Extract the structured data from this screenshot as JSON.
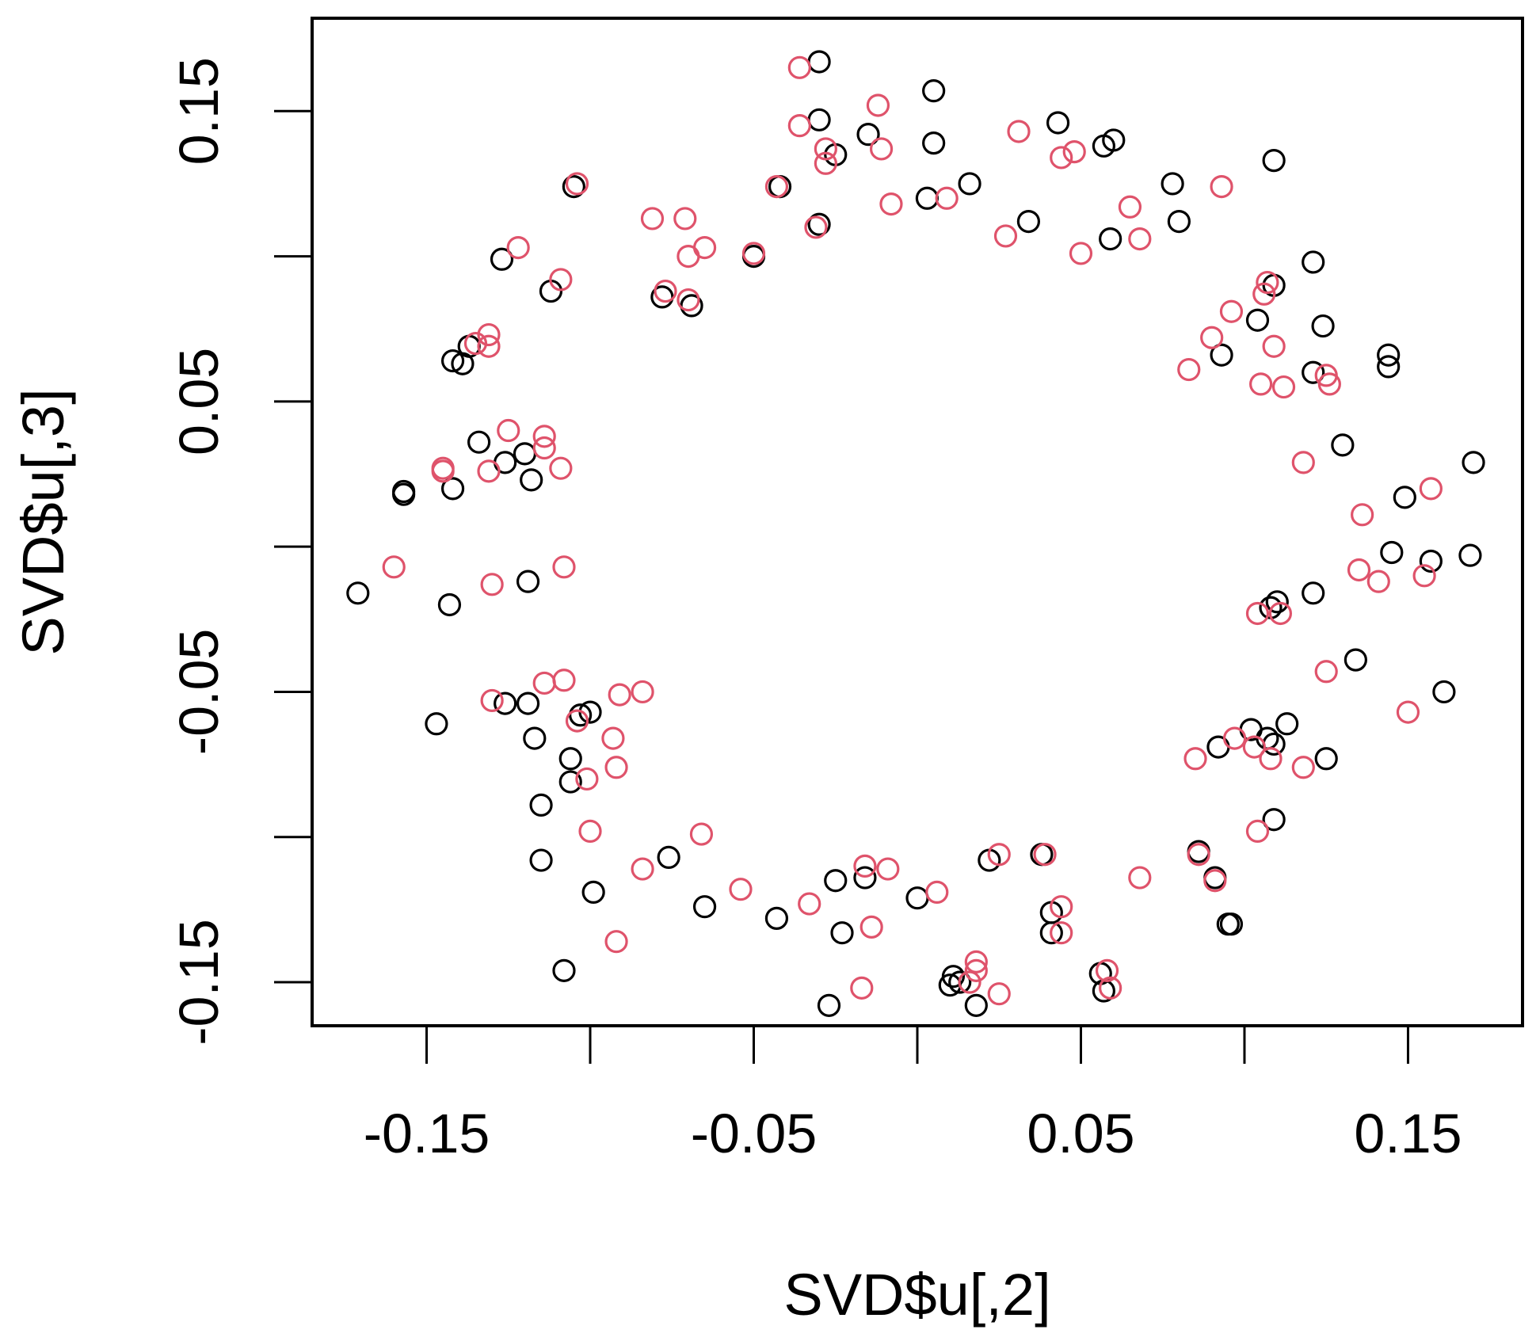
{
  "chart_data": {
    "type": "scatter",
    "title": "",
    "xlabel": "SVD$u[,2]",
    "ylabel": "SVD$u[,3]",
    "xlim": [
      -0.185,
      0.185
    ],
    "ylim": [
      -0.165,
      0.182
    ],
    "xticks": [
      -0.15,
      -0.1,
      -0.05,
      0,
      0.05,
      0.1,
      0.15
    ],
    "xtick_labels": [
      "-0.15",
      "-0.05",
      "0.05",
      "0.15"
    ],
    "xtick_label_values": [
      -0.15,
      -0.05,
      0.05,
      0.15
    ],
    "yticks": [
      -0.15,
      -0.1,
      -0.05,
      0,
      0.05,
      0.1,
      0.15
    ],
    "ytick_labels": [
      "-0.15",
      "-0.05",
      "0.05",
      "0.15"
    ],
    "ytick_label_values": [
      -0.15,
      -0.05,
      0.05,
      0.15
    ],
    "grid": false,
    "legend": "none",
    "marker": "open-circle",
    "series": [
      {
        "color": "#000000",
        "points": [
          [
            -0.03,
            0.167
          ],
          [
            0.005,
            0.157
          ],
          [
            -0.03,
            0.147
          ],
          [
            0.005,
            0.139
          ],
          [
            -0.015,
            0.142
          ],
          [
            -0.025,
            0.135
          ],
          [
            0.043,
            0.146
          ],
          [
            0.057,
            0.138
          ],
          [
            0.06,
            0.14
          ],
          [
            0.109,
            0.133
          ],
          [
            0.078,
            0.125
          ],
          [
            0.016,
            0.125
          ],
          [
            -0.042,
            0.124
          ],
          [
            -0.105,
            0.124
          ],
          [
            0.003,
            0.12
          ],
          [
            0.034,
            0.112
          ],
          [
            0.08,
            0.112
          ],
          [
            -0.03,
            0.111
          ],
          [
            -0.05,
            0.1
          ],
          [
            0.059,
            0.106
          ],
          [
            -0.127,
            0.099
          ],
          [
            0.121,
            0.098
          ],
          [
            -0.112,
            0.088
          ],
          [
            0.109,
            0.09
          ],
          [
            -0.078,
            0.086
          ],
          [
            -0.069,
            0.083
          ],
          [
            0.104,
            0.078
          ],
          [
            0.124,
            0.076
          ],
          [
            -0.137,
            0.069
          ],
          [
            -0.142,
            0.064
          ],
          [
            -0.139,
            0.063
          ],
          [
            0.093,
            0.066
          ],
          [
            0.144,
            0.066
          ],
          [
            0.144,
            0.062
          ],
          [
            0.121,
            0.06
          ],
          [
            -0.134,
            0.036
          ],
          [
            0.13,
            0.035
          ],
          [
            -0.126,
            0.029
          ],
          [
            -0.12,
            0.032
          ],
          [
            -0.118,
            0.023
          ],
          [
            -0.142,
            0.02
          ],
          [
            -0.157,
            0.018
          ],
          [
            -0.157,
            0.019
          ],
          [
            0.17,
            0.029
          ],
          [
            0.149,
            0.017
          ],
          [
            0.145,
            -0.002
          ],
          [
            0.157,
            -0.005
          ],
          [
            0.169,
            -0.003
          ],
          [
            -0.171,
            -0.016
          ],
          [
            -0.119,
            -0.012
          ],
          [
            -0.143,
            -0.02
          ],
          [
            0.121,
            -0.016
          ],
          [
            0.11,
            -0.019
          ],
          [
            0.108,
            -0.021
          ],
          [
            0.134,
            -0.039
          ],
          [
            0.161,
            -0.05
          ],
          [
            -0.126,
            -0.054
          ],
          [
            -0.119,
            -0.054
          ],
          [
            -0.103,
            -0.058
          ],
          [
            -0.1,
            -0.057
          ],
          [
            -0.147,
            -0.061
          ],
          [
            -0.117,
            -0.066
          ],
          [
            0.113,
            -0.061
          ],
          [
            0.102,
            -0.063
          ],
          [
            0.107,
            -0.066
          ],
          [
            0.109,
            -0.068
          ],
          [
            0.092,
            -0.069
          ],
          [
            -0.106,
            -0.073
          ],
          [
            0.125,
            -0.073
          ],
          [
            -0.106,
            -0.081
          ],
          [
            -0.115,
            -0.089
          ],
          [
            0.109,
            -0.094
          ],
          [
            0.086,
            -0.105
          ],
          [
            -0.076,
            -0.107
          ],
          [
            -0.115,
            -0.108
          ],
          [
            0.022,
            -0.108
          ],
          [
            0.038,
            -0.106
          ],
          [
            -0.016,
            -0.114
          ],
          [
            -0.025,
            -0.115
          ],
          [
            0.091,
            -0.114
          ],
          [
            -0.099,
            -0.119
          ],
          [
            0,
            -0.121
          ],
          [
            -0.065,
            -0.124
          ],
          [
            -0.043,
            -0.128
          ],
          [
            0.041,
            -0.126
          ],
          [
            0.041,
            -0.133
          ],
          [
            -0.023,
            -0.133
          ],
          [
            0.095,
            -0.13
          ],
          [
            0.096,
            -0.13
          ],
          [
            -0.108,
            -0.146
          ],
          [
            0.011,
            -0.148
          ],
          [
            0.01,
            -0.151
          ],
          [
            0.013,
            -0.15
          ],
          [
            0.056,
            -0.147
          ],
          [
            0.057,
            -0.153
          ],
          [
            -0.027,
            -0.158
          ],
          [
            0.018,
            -0.158
          ]
        ]
      },
      {
        "color": "#df536b",
        "points": [
          [
            -0.036,
            0.165
          ],
          [
            -0.012,
            0.152
          ],
          [
            -0.036,
            0.145
          ],
          [
            -0.028,
            0.137
          ],
          [
            -0.011,
            0.137
          ],
          [
            0.031,
            0.143
          ],
          [
            0.044,
            0.134
          ],
          [
            0.048,
            0.136
          ],
          [
            -0.104,
            0.125
          ],
          [
            -0.043,
            0.124
          ],
          [
            -0.028,
            0.132
          ],
          [
            0.093,
            0.124
          ],
          [
            -0.008,
            0.118
          ],
          [
            0.009,
            0.12
          ],
          [
            0.065,
            0.117
          ],
          [
            -0.081,
            0.113
          ],
          [
            -0.071,
            0.113
          ],
          [
            -0.031,
            0.11
          ],
          [
            0.027,
            0.107
          ],
          [
            0.068,
            0.106
          ],
          [
            -0.122,
            0.103
          ],
          [
            -0.065,
            0.103
          ],
          [
            -0.07,
            0.1
          ],
          [
            -0.05,
            0.101
          ],
          [
            0.05,
            0.101
          ],
          [
            -0.109,
            0.092
          ],
          [
            -0.077,
            0.088
          ],
          [
            -0.07,
            0.085
          ],
          [
            0.107,
            0.091
          ],
          [
            0.106,
            0.087
          ],
          [
            0.096,
            0.081
          ],
          [
            -0.131,
            0.073
          ],
          [
            -0.131,
            0.069
          ],
          [
            -0.135,
            0.07
          ],
          [
            0.09,
            0.072
          ],
          [
            0.109,
            0.069
          ],
          [
            0.083,
            0.061
          ],
          [
            0.125,
            0.059
          ],
          [
            0.126,
            0.056
          ],
          [
            0.105,
            0.056
          ],
          [
            0.112,
            0.055
          ],
          [
            -0.125,
            0.04
          ],
          [
            -0.114,
            0.038
          ],
          [
            -0.114,
            0.034
          ],
          [
            -0.145,
            0.027
          ],
          [
            -0.145,
            0.026
          ],
          [
            -0.131,
            0.026
          ],
          [
            -0.109,
            0.027
          ],
          [
            0.118,
            0.029
          ],
          [
            0.157,
            0.02
          ],
          [
            0.136,
            0.011
          ],
          [
            -0.16,
            -0.007
          ],
          [
            -0.108,
            -0.007
          ],
          [
            -0.13,
            -0.013
          ],
          [
            0.135,
            -0.008
          ],
          [
            0.141,
            -0.012
          ],
          [
            0.155,
            -0.01
          ],
          [
            0.104,
            -0.023
          ],
          [
            0.111,
            -0.023
          ],
          [
            -0.114,
            -0.047
          ],
          [
            -0.108,
            -0.046
          ],
          [
            -0.084,
            -0.05
          ],
          [
            -0.091,
            -0.051
          ],
          [
            0.125,
            -0.043
          ],
          [
            -0.13,
            -0.053
          ],
          [
            0.15,
            -0.057
          ],
          [
            -0.104,
            -0.06
          ],
          [
            -0.093,
            -0.066
          ],
          [
            0.103,
            -0.069
          ],
          [
            0.097,
            -0.066
          ],
          [
            0.085,
            -0.073
          ],
          [
            0.108,
            -0.073
          ],
          [
            0.118,
            -0.076
          ],
          [
            -0.092,
            -0.076
          ],
          [
            -0.101,
            -0.08
          ],
          [
            -0.1,
            -0.098
          ],
          [
            -0.066,
            -0.099
          ],
          [
            0.104,
            -0.098
          ],
          [
            0.086,
            -0.106
          ],
          [
            0.025,
            -0.106
          ],
          [
            0.039,
            -0.106
          ],
          [
            -0.084,
            -0.111
          ],
          [
            -0.016,
            -0.11
          ],
          [
            -0.009,
            -0.111
          ],
          [
            0.068,
            -0.114
          ],
          [
            0.091,
            -0.115
          ],
          [
            -0.054,
            -0.118
          ],
          [
            0.006,
            -0.119
          ],
          [
            -0.033,
            -0.123
          ],
          [
            0.044,
            -0.124
          ],
          [
            0.044,
            -0.133
          ],
          [
            -0.014,
            -0.131
          ],
          [
            -0.092,
            -0.136
          ],
          [
            0.018,
            -0.143
          ],
          [
            0.018,
            -0.146
          ],
          [
            0.016,
            -0.15
          ],
          [
            0.058,
            -0.146
          ],
          [
            0.059,
            -0.152
          ],
          [
            -0.017,
            -0.152
          ],
          [
            0.025,
            -0.154
          ]
        ]
      }
    ]
  }
}
